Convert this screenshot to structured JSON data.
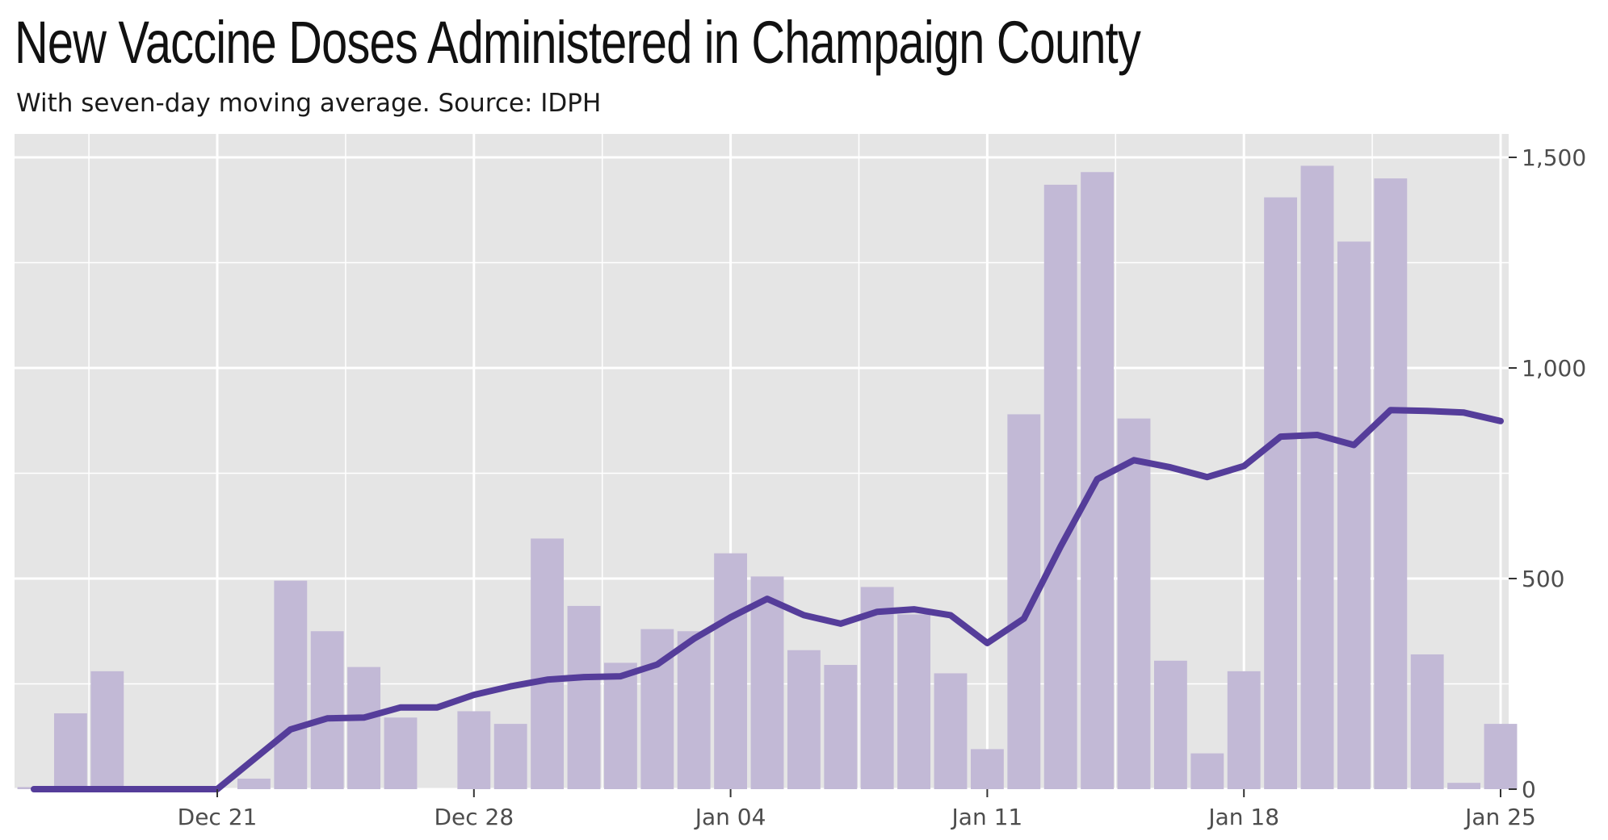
{
  "title": "New Vaccine Doses Administered in Champaign County",
  "subtitle": "With seven-day moving average. Source: IDPH",
  "colors": {
    "panel": "#e5e5e5",
    "grid": "#ffffff",
    "bar": "#c2b9d6",
    "line": "#553d9a",
    "axis_text": "#4d4d4d"
  },
  "chart_data": {
    "type": "bar",
    "x": [
      "2020-12-16",
      "2020-12-17",
      "2020-12-18",
      "2020-12-19",
      "2020-12-20",
      "2020-12-21",
      "2020-12-22",
      "2020-12-23",
      "2020-12-24",
      "2020-12-25",
      "2020-12-26",
      "2020-12-27",
      "2020-12-28",
      "2020-12-29",
      "2020-12-30",
      "2020-12-31",
      "2021-01-01",
      "2021-01-02",
      "2021-01-03",
      "2021-01-04",
      "2021-01-05",
      "2021-01-06",
      "2021-01-07",
      "2021-01-08",
      "2021-01-09",
      "2021-01-10",
      "2021-01-11",
      "2021-01-12",
      "2021-01-13",
      "2021-01-14",
      "2021-01-15",
      "2021-01-16",
      "2021-01-17",
      "2021-01-18",
      "2021-01-19",
      "2021-01-20",
      "2021-01-21",
      "2021-01-22",
      "2021-01-23",
      "2021-01-24",
      "2021-01-25"
    ],
    "series": [
      {
        "type": "bar",
        "values": [
          5,
          180,
          280,
          0,
          0,
          0,
          25,
          495,
          375,
          290,
          170,
          0,
          185,
          155,
          595,
          435,
          300,
          380,
          375,
          560,
          505,
          330,
          295,
          480,
          415,
          275,
          95,
          890,
          1435,
          1465,
          880,
          305,
          85,
          280,
          1405,
          1480,
          1300,
          1450,
          320,
          15,
          155
        ]
      },
      {
        "type": "line",
        "values": [
          0,
          0,
          0,
          0,
          0,
          0,
          71,
          142,
          168,
          170,
          194,
          194,
          224,
          244,
          260,
          266,
          268,
          296,
          357,
          408,
          452,
          413,
          393,
          421,
          427,
          413,
          347,
          405,
          576,
          736,
          781,
          764,
          741,
          767,
          837,
          841,
          817,
          900,
          898,
          894,
          874
        ]
      }
    ],
    "x_ticks": [
      "Dec 21",
      "Dec 28",
      "Jan 04",
      "Jan 11",
      "Jan 18",
      "Jan 25"
    ],
    "y_ticks": [
      "0",
      "500",
      "1,000",
      "1,500"
    ],
    "ylim": [
      0,
      1550
    ],
    "y_axis_position": "right",
    "grid": true
  }
}
